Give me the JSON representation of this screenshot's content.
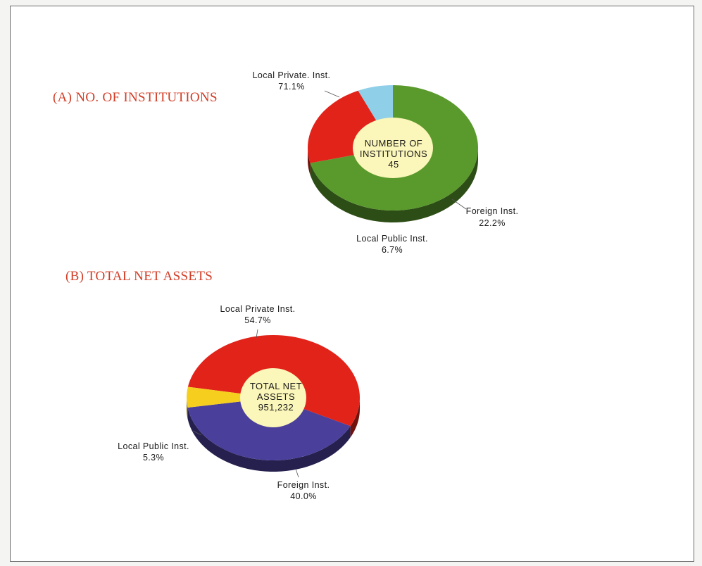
{
  "chart_data": [
    {
      "type": "pie",
      "title": "(A) NO. OF INSTITUTIONS",
      "center_label": [
        "NUMBER OF",
        "INSTITUTIONS",
        "45"
      ],
      "slices": [
        {
          "label": "Local Private. Inst.",
          "value": 71.1,
          "pct_text": "71.1%",
          "color": "#5a9a2c"
        },
        {
          "label": "Foreign Inst.",
          "value": 22.2,
          "pct_text": "22.2%",
          "color": "#e2231a"
        },
        {
          "label": "Local Public Inst.",
          "value": 6.7,
          "pct_text": "6.7%",
          "color": "#8fcfe8"
        }
      ]
    },
    {
      "type": "pie",
      "title": "(B) TOTAL NET ASSETS",
      "center_label": [
        "TOTAL NET",
        "ASSETS",
        "951,232"
      ],
      "slices": [
        {
          "label": "Local Private Inst.",
          "value": 54.7,
          "pct_text": "54.7%",
          "color": "#e2231a"
        },
        {
          "label": "Foreign Inst.",
          "value": 40.0,
          "pct_text": "40.0%",
          "color": "#4a3f9a"
        },
        {
          "label": "Local Public Inst.",
          "value": 5.3,
          "pct_text": "5.3%",
          "color": "#f6cf1e"
        }
      ]
    }
  ]
}
